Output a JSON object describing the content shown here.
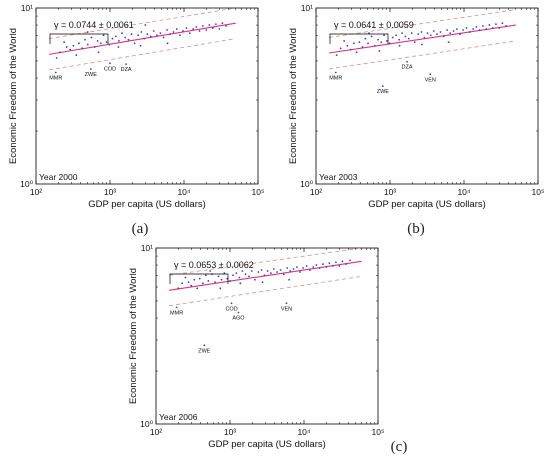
{
  "chart_data": [
    {
      "type": "scatter",
      "panel_label": "(a)",
      "year_label": "Year 2000",
      "fit_label": "γ = 0.0744 ± 0.0061",
      "xlabel": "GDP per capita (US dollars)",
      "ylabel": "Economic Freedom of the World",
      "x_scale": "log",
      "y_scale": "log",
      "xlim": [
        100,
        100000
      ],
      "ylim": [
        1,
        10
      ],
      "x_tick_labels": [
        "10²",
        "10³",
        "10⁴",
        "10⁵"
      ],
      "y_tick_labels": [
        "10⁰",
        "10¹"
      ],
      "grid": false,
      "fit_line": {
        "x": [
          150,
          50000
        ],
        "y": [
          5.45,
          8.2
        ]
      },
      "band_upper": {
        "x": [
          150,
          50000
        ],
        "y": [
          6.7,
          10.0
        ]
      },
      "band_lower": {
        "x": [
          150,
          50000
        ],
        "y": [
          4.45,
          6.7
        ]
      },
      "labeled_points": [
        {
          "name": "MMR",
          "x": 185,
          "y": 4.3
        },
        {
          "name": "ZWE",
          "x": 550,
          "y": 4.5
        },
        {
          "name": "COD",
          "x": 1000,
          "y": 4.85
        },
        {
          "name": "DZA",
          "x": 1650,
          "y": 4.8
        }
      ],
      "points": [
        [
          190,
          5.2
        ],
        [
          210,
          5.6
        ],
        [
          240,
          6.4
        ],
        [
          260,
          6.0
        ],
        [
          290,
          5.8
        ],
        [
          320,
          6.1
        ],
        [
          350,
          5.4
        ],
        [
          380,
          6.3
        ],
        [
          420,
          5.9
        ],
        [
          460,
          6.6
        ],
        [
          500,
          6.2
        ],
        [
          560,
          6.8
        ],
        [
          620,
          6.0
        ],
        [
          680,
          6.5
        ],
        [
          750,
          6.3
        ],
        [
          820,
          7.0
        ],
        [
          900,
          6.4
        ],
        [
          980,
          6.2
        ],
        [
          1080,
          6.7
        ],
        [
          1200,
          6.9
        ],
        [
          1320,
          6.5
        ],
        [
          1450,
          7.2
        ],
        [
          1600,
          6.8
        ],
        [
          1780,
          6.6
        ],
        [
          1950,
          7.1
        ],
        [
          2150,
          6.3
        ],
        [
          2400,
          7.0
        ],
        [
          2650,
          7.3
        ],
        [
          2900,
          6.7
        ],
        [
          3200,
          7.1
        ],
        [
          3550,
          6.9
        ],
        [
          3900,
          7.4
        ],
        [
          4300,
          7.0
        ],
        [
          4800,
          7.2
        ],
        [
          5300,
          6.8
        ],
        [
          5900,
          7.5
        ],
        [
          6500,
          7.1
        ],
        [
          7200,
          7.3
        ],
        [
          8000,
          7.6
        ],
        [
          8800,
          7.0
        ],
        [
          9700,
          7.4
        ],
        [
          10800,
          7.7
        ],
        [
          12000,
          7.2
        ],
        [
          13300,
          7.6
        ],
        [
          14700,
          7.8
        ],
        [
          16200,
          7.4
        ],
        [
          18000,
          7.9
        ],
        [
          20000,
          7.5
        ],
        [
          22000,
          8.0
        ],
        [
          24500,
          7.7
        ],
        [
          27000,
          8.1
        ],
        [
          30000,
          7.6
        ],
        [
          33000,
          8.2
        ],
        [
          37000,
          7.9
        ],
        [
          700,
          5.6
        ],
        [
          1300,
          6.0
        ],
        [
          2600,
          6.1
        ],
        [
          500,
          7.3
        ],
        [
          3000,
          8.0
        ],
        [
          6000,
          6.3
        ]
      ]
    },
    {
      "type": "scatter",
      "panel_label": "(b)",
      "year_label": "Year 2003",
      "fit_label": "γ = 0.0641 ± 0.0059",
      "xlabel": "GDP per capita (US dollars)",
      "ylabel": "Economic Freedom of the World",
      "x_scale": "log",
      "y_scale": "log",
      "xlim": [
        100,
        100000
      ],
      "ylim": [
        1,
        10
      ],
      "x_tick_labels": [
        "10²",
        "10³",
        "10⁴",
        "10⁵"
      ],
      "y_tick_labels": [
        "10⁰",
        "10¹"
      ],
      "grid": false,
      "fit_line": {
        "x": [
          150,
          50000
        ],
        "y": [
          5.55,
          8.0
        ]
      },
      "band_upper": {
        "x": [
          150,
          50000
        ],
        "y": [
          6.8,
          9.8
        ]
      },
      "band_lower": {
        "x": [
          150,
          50000
        ],
        "y": [
          4.5,
          6.5
        ]
      },
      "labeled_points": [
        {
          "name": "MMR",
          "x": 185,
          "y": 4.3
        },
        {
          "name": "ZWE",
          "x": 800,
          "y": 3.6
        },
        {
          "name": "DZA",
          "x": 1700,
          "y": 4.95
        },
        {
          "name": "VEN",
          "x": 3500,
          "y": 4.2
        }
      ],
      "points": [
        [
          190,
          5.4
        ],
        [
          215,
          5.9
        ],
        [
          240,
          6.5
        ],
        [
          265,
          6.1
        ],
        [
          295,
          5.8
        ],
        [
          325,
          6.3
        ],
        [
          355,
          5.6
        ],
        [
          385,
          6.4
        ],
        [
          425,
          6.0
        ],
        [
          465,
          6.7
        ],
        [
          505,
          6.3
        ],
        [
          565,
          6.9
        ],
        [
          625,
          6.1
        ],
        [
          690,
          6.6
        ],
        [
          760,
          6.4
        ],
        [
          830,
          7.0
        ],
        [
          910,
          6.5
        ],
        [
          990,
          6.3
        ],
        [
          1090,
          6.8
        ],
        [
          1210,
          7.0
        ],
        [
          1330,
          6.6
        ],
        [
          1460,
          7.2
        ],
        [
          1610,
          6.9
        ],
        [
          1790,
          6.7
        ],
        [
          1960,
          7.2
        ],
        [
          2160,
          6.4
        ],
        [
          2410,
          7.1
        ],
        [
          2660,
          7.3
        ],
        [
          2910,
          6.8
        ],
        [
          3210,
          7.2
        ],
        [
          3560,
          7.0
        ],
        [
          3910,
          7.4
        ],
        [
          4310,
          7.1
        ],
        [
          4810,
          7.3
        ],
        [
          5310,
          6.9
        ],
        [
          5910,
          7.5
        ],
        [
          6510,
          7.2
        ],
        [
          7210,
          7.4
        ],
        [
          8010,
          7.6
        ],
        [
          8810,
          7.1
        ],
        [
          9710,
          7.5
        ],
        [
          10810,
          7.7
        ],
        [
          12010,
          7.3
        ],
        [
          13310,
          7.6
        ],
        [
          14710,
          7.8
        ],
        [
          16210,
          7.5
        ],
        [
          18010,
          7.9
        ],
        [
          20010,
          7.6
        ],
        [
          22010,
          8.0
        ],
        [
          24510,
          7.7
        ],
        [
          27010,
          8.1
        ],
        [
          30010,
          7.7
        ],
        [
          33010,
          8.2
        ],
        [
          37010,
          7.9
        ],
        [
          720,
          5.7
        ],
        [
          1350,
          6.1
        ],
        [
          2700,
          6.2
        ],
        [
          520,
          7.2
        ],
        [
          6200,
          6.4
        ]
      ]
    },
    {
      "type": "scatter",
      "panel_label": "(c)",
      "year_label": "Year 2006",
      "fit_label": "γ = 0.0653 ± 0.0062",
      "xlabel": "GDP per capita (US dollars)",
      "ylabel": "Economic Freedom of the World",
      "x_scale": "log",
      "y_scale": "log",
      "xlim": [
        100,
        100000
      ],
      "ylim": [
        1,
        10
      ],
      "x_tick_labels": [
        "10²",
        "10³",
        "10⁴",
        "10⁵"
      ],
      "y_tick_labels": [
        "10⁰",
        "10¹"
      ],
      "grid": false,
      "fit_line": {
        "x": [
          150,
          60000
        ],
        "y": [
          5.75,
          8.4
        ]
      },
      "band_upper": {
        "x": [
          150,
          60000
        ],
        "y": [
          7.0,
          10.0
        ]
      },
      "band_lower": {
        "x": [
          150,
          60000
        ],
        "y": [
          4.7,
          6.9
        ]
      },
      "labeled_points": [
        {
          "name": "MMR",
          "x": 190,
          "y": 4.6
        },
        {
          "name": "ZWE",
          "x": 450,
          "y": 2.8
        },
        {
          "name": "COD",
          "x": 1050,
          "y": 4.85
        },
        {
          "name": "AGO",
          "x": 1300,
          "y": 4.3
        },
        {
          "name": "VEN",
          "x": 5800,
          "y": 4.85
        }
      ],
      "points": [
        [
          200,
          5.9
        ],
        [
          225,
          6.3
        ],
        [
          250,
          6.8
        ],
        [
          275,
          6.4
        ],
        [
          300,
          6.1
        ],
        [
          330,
          6.6
        ],
        [
          360,
          5.9
        ],
        [
          390,
          6.7
        ],
        [
          430,
          6.3
        ],
        [
          470,
          7.0
        ],
        [
          510,
          6.5
        ],
        [
          570,
          7.1
        ],
        [
          630,
          6.4
        ],
        [
          700,
          6.9
        ],
        [
          770,
          6.6
        ],
        [
          840,
          7.2
        ],
        [
          920,
          6.7
        ],
        [
          1000,
          6.5
        ],
        [
          1100,
          7.0
        ],
        [
          1220,
          7.2
        ],
        [
          1340,
          6.8
        ],
        [
          1470,
          7.4
        ],
        [
          1620,
          7.1
        ],
        [
          1800,
          6.9
        ],
        [
          1970,
          7.4
        ],
        [
          2170,
          6.6
        ],
        [
          2420,
          7.3
        ],
        [
          2670,
          7.5
        ],
        [
          2920,
          7.0
        ],
        [
          3220,
          7.4
        ],
        [
          3570,
          7.2
        ],
        [
          3920,
          7.6
        ],
        [
          4320,
          7.3
        ],
        [
          4820,
          7.5
        ],
        [
          5320,
          7.1
        ],
        [
          5920,
          7.7
        ],
        [
          6520,
          7.4
        ],
        [
          7220,
          7.6
        ],
        [
          8020,
          7.8
        ],
        [
          8820,
          7.3
        ],
        [
          9720,
          7.7
        ],
        [
          10820,
          7.9
        ],
        [
          12020,
          7.5
        ],
        [
          13320,
          7.8
        ],
        [
          14720,
          8.0
        ],
        [
          16220,
          7.7
        ],
        [
          18020,
          8.1
        ],
        [
          20020,
          7.8
        ],
        [
          22020,
          8.2
        ],
        [
          24520,
          7.9
        ],
        [
          27020,
          8.3
        ],
        [
          30020,
          7.9
        ],
        [
          33020,
          8.4
        ],
        [
          37020,
          8.1
        ],
        [
          42000,
          8.5
        ],
        [
          740,
          5.9
        ],
        [
          1380,
          6.3
        ],
        [
          2750,
          6.4
        ],
        [
          540,
          7.4
        ],
        [
          6300,
          6.6
        ]
      ]
    }
  ]
}
